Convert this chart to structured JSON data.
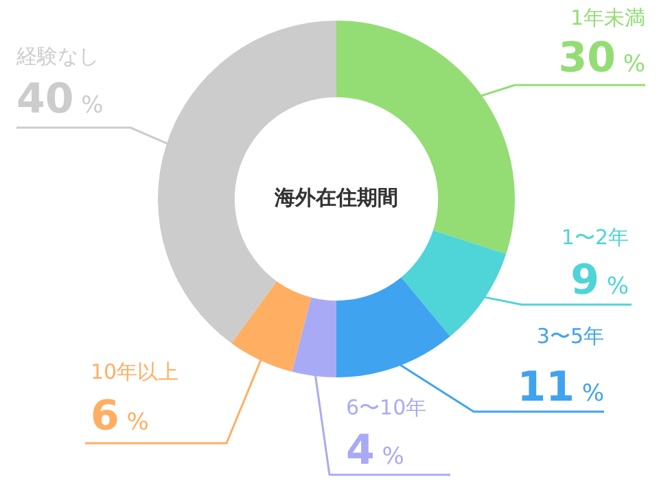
{
  "chart_data": {
    "type": "donut",
    "title": "海外在住期間",
    "categories": [
      "1年未満",
      "1〜2年",
      "3〜5年",
      "6〜10年",
      "10年以上",
      "経験なし"
    ],
    "values": [
      30,
      9,
      11,
      4,
      6,
      40
    ],
    "colors": [
      "#93dd74",
      "#4fd4d8",
      "#3fa3f0",
      "#a9aaf5",
      "#ffae62",
      "#cccccc"
    ],
    "value_labels": [
      "30 %",
      "9 %",
      "11 %",
      "4 %",
      "6 %",
      "40 %"
    ],
    "legend": false
  }
}
